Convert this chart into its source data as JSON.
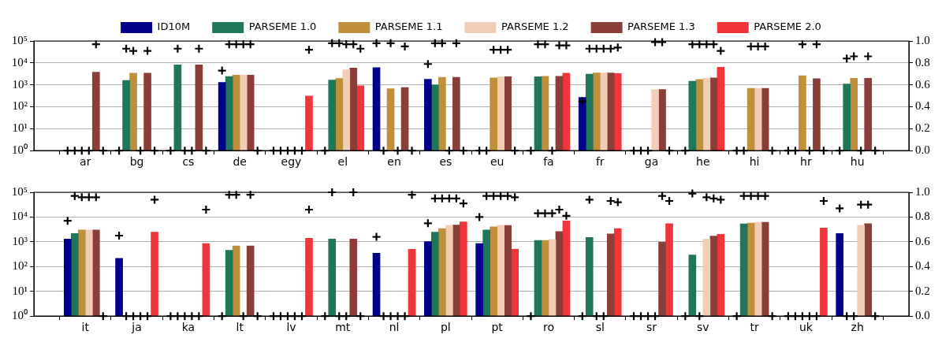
{
  "chart_data": [
    {
      "type": "bar",
      "legend": "top",
      "grid": "y",
      "log": "y",
      "categories": [
        "ar",
        "bg",
        "cs",
        "de",
        "egy",
        "el",
        "en",
        "es",
        "eu",
        "fa",
        "fr",
        "ga",
        "he",
        "hi",
        "hr",
        "hu"
      ],
      "ylim": [
        1,
        100000
      ],
      "yticks": [
        {
          "value": 1,
          "label": "10⁰"
        },
        {
          "value": 10,
          "label": "10¹"
        },
        {
          "value": 100,
          "label": "10²"
        },
        {
          "value": 1000,
          "label": "10³"
        },
        {
          "value": 10000,
          "label": "10⁴"
        },
        {
          "value": 100000,
          "label": "10⁵"
        }
      ],
      "y2lim": [
        0,
        1
      ],
      "y2ticks": [
        {
          "value": 0,
          "label": "0.0"
        },
        {
          "value": 0.2,
          "label": "0.2"
        },
        {
          "value": 0.4,
          "label": "0.4"
        },
        {
          "value": 0.6,
          "label": "0.6"
        },
        {
          "value": 0.8,
          "label": "0.8"
        },
        {
          "value": 1,
          "label": "1.0"
        }
      ],
      "series": [
        {
          "name": "ID10M",
          "color": "#00008b",
          "values": [
            null,
            null,
            null,
            1300,
            null,
            null,
            6100,
            1800,
            null,
            null,
            270,
            null,
            null,
            null,
            null,
            null
          ]
        },
        {
          "name": "PARSEME 1.0",
          "color": "#217558",
          "values": [
            null,
            1600,
            8200,
            2400,
            null,
            1650,
            null,
            980,
            null,
            2350,
            3100,
            null,
            1450,
            null,
            null,
            1100
          ]
        },
        {
          "name": "PARSEME 1.1",
          "color": "#bf8f3a",
          "values": [
            null,
            3400,
            null,
            2750,
            null,
            1950,
            670,
            2200,
            2100,
            2450,
            3500,
            null,
            1750,
            700,
            2600,
            2000
          ]
        },
        {
          "name": "PARSEME 1.2",
          "color": "#f2cdb5",
          "values": [
            null,
            null,
            null,
            2800,
            null,
            4900,
            null,
            null,
            2350,
            null,
            3500,
            610,
            2000,
            700,
            null,
            null
          ]
        },
        {
          "name": "PARSEME 1.3",
          "color": "#8b3e38",
          "values": [
            3800,
            3400,
            8200,
            2800,
            null,
            5800,
            750,
            2200,
            2350,
            2450,
            3500,
            610,
            2100,
            700,
            1900,
            2000
          ]
        },
        {
          "name": "PARSEME 2.0",
          "color": "#f2353b",
          "values": [
            null,
            null,
            null,
            null,
            310,
            910,
            null,
            null,
            null,
            3400,
            3250,
            null,
            6300,
            null,
            null,
            null
          ]
        },
        {
          "type": "scatter",
          "axis": "y2",
          "marker": "cross",
          "color": "#000000",
          "values": [
            0,
            0,
            0,
            0.73,
            0,
            0,
            0.98,
            0.79,
            0,
            0,
            0.45,
            0,
            0,
            0,
            0,
            0
          ]
        },
        {
          "type": "scatter",
          "axis": "y2",
          "marker": "cross",
          "color": "#000000",
          "values": [
            0,
            0.93,
            0.93,
            0.97,
            0,
            0.98,
            0,
            0.98,
            0,
            0.97,
            0.93,
            0,
            0.97,
            0,
            0,
            0.84
          ]
        },
        {
          "type": "scatter",
          "axis": "y2",
          "marker": "cross",
          "color": "#000000",
          "values": [
            0,
            0.91,
            0,
            0.97,
            0,
            0.98,
            0.98,
            0.98,
            0.92,
            0.97,
            0.93,
            0,
            0.97,
            0.95,
            0.97,
            0.86
          ]
        },
        {
          "type": "scatter",
          "axis": "y2",
          "marker": "cross",
          "color": "#000000",
          "values": [
            0,
            0,
            0,
            0.97,
            0,
            0.97,
            0,
            0,
            0.92,
            0,
            0.93,
            0.99,
            0.97,
            0.95,
            0,
            0
          ]
        },
        {
          "type": "scatter",
          "axis": "y2",
          "marker": "cross",
          "color": "#000000",
          "values": [
            0.97,
            0.91,
            0.93,
            0.97,
            0,
            0.97,
            0.95,
            0.98,
            0.92,
            0.96,
            0.93,
            0.99,
            0.97,
            0.95,
            0.97,
            0.86
          ]
        },
        {
          "type": "scatter",
          "axis": "y2",
          "marker": "cross",
          "color": "#000000",
          "values": [
            0,
            0,
            0,
            0,
            0.92,
            0.93,
            0,
            0,
            0,
            0.96,
            0.94,
            0,
            0.91,
            0,
            0,
            0
          ]
        }
      ]
    },
    {
      "type": "bar",
      "grid": "y",
      "log": "y",
      "categories": [
        "it",
        "ja",
        "ka",
        "lt",
        "lv",
        "mt",
        "nl",
        "pl",
        "pt",
        "ro",
        "sl",
        "sr",
        "sv",
        "tr",
        "uk",
        "zh"
      ],
      "ylim": [
        1,
        100000
      ],
      "yticks": [
        {
          "value": 1,
          "label": "10⁰"
        },
        {
          "value": 10,
          "label": "10¹"
        },
        {
          "value": 100,
          "label": "10²"
        },
        {
          "value": 1000,
          "label": "10³"
        },
        {
          "value": 10000,
          "label": "10⁴"
        },
        {
          "value": 100000,
          "label": "10⁵"
        }
      ],
      "y2lim": [
        0,
        1
      ],
      "y2ticks": [
        {
          "value": 0,
          "label": "0.0"
        },
        {
          "value": 0.2,
          "label": "0.2"
        },
        {
          "value": 0.4,
          "label": "0.4"
        },
        {
          "value": 0.6,
          "label": "0.6"
        },
        {
          "value": 0.8,
          "label": "0.8"
        },
        {
          "value": 1,
          "label": "1.0"
        }
      ],
      "series": [
        {
          "color": "#00008b",
          "values": [
            1300,
            215,
            null,
            null,
            null,
            null,
            350,
            1020,
            850,
            null,
            null,
            null,
            null,
            null,
            null,
            2150
          ]
        },
        {
          "color": "#217558",
          "values": [
            2150,
            null,
            null,
            455,
            null,
            1300,
            null,
            2450,
            3000,
            1150,
            1500,
            null,
            295,
            5300,
            null,
            null
          ]
        },
        {
          "color": "#bf8f3a",
          "values": [
            3000,
            null,
            null,
            680,
            null,
            null,
            null,
            3450,
            4000,
            1150,
            null,
            null,
            null,
            5700,
            null,
            null
          ]
        },
        {
          "color": "#f2cdb5",
          "values": [
            3000,
            null,
            null,
            null,
            null,
            null,
            null,
            4700,
            4600,
            1250,
            null,
            null,
            1300,
            6100,
            null,
            4700
          ]
        },
        {
          "color": "#8b3e38",
          "values": [
            3000,
            null,
            null,
            680,
            null,
            1300,
            null,
            4800,
            4600,
            2600,
            2100,
            970,
            1700,
            6100,
            null,
            5400
          ]
        },
        {
          "color": "#f2353b",
          "values": [
            null,
            2450,
            850,
            null,
            1400,
            null,
            500,
            6400,
            510,
            7000,
            3400,
            5400,
            2000,
            null,
            3600,
            null
          ]
        },
        {
          "type": "scatter",
          "axis": "y2",
          "marker": "cross",
          "color": "#000000",
          "values": [
            0.77,
            0.65,
            0,
            0,
            0,
            0,
            0.64,
            0.75,
            0.8,
            0,
            0,
            0,
            0,
            0,
            0,
            0.87
          ]
        },
        {
          "type": "scatter",
          "axis": "y2",
          "marker": "cross",
          "color": "#000000",
          "values": [
            0.97,
            0,
            0,
            0.98,
            0,
            1.0,
            0,
            0.95,
            0.97,
            0.83,
            0.94,
            0,
            0.99,
            0.97,
            0,
            0
          ]
        },
        {
          "type": "scatter",
          "axis": "y2",
          "marker": "cross",
          "color": "#000000",
          "values": [
            0.96,
            0,
            0,
            0.98,
            0,
            0,
            0,
            0.95,
            0.97,
            0.83,
            0,
            0,
            0,
            0.97,
            0,
            0
          ]
        },
        {
          "type": "scatter",
          "axis": "y2",
          "marker": "cross",
          "color": "#000000",
          "values": [
            0.96,
            0,
            0,
            0,
            0,
            0,
            0,
            0.95,
            0.97,
            0.83,
            0,
            0,
            0.96,
            0.97,
            0,
            0.9
          ]
        },
        {
          "type": "scatter",
          "axis": "y2",
          "marker": "cross",
          "color": "#000000",
          "values": [
            0.96,
            0,
            0,
            0.98,
            0,
            1.0,
            0,
            0.95,
            0.97,
            0.86,
            0.93,
            0.97,
            0.95,
            0.97,
            0,
            0.9
          ]
        },
        {
          "type": "scatter",
          "axis": "y2",
          "marker": "cross",
          "color": "#000000",
          "values": [
            0,
            0.94,
            0.86,
            0,
            0.86,
            0,
            0.98,
            0.91,
            0.96,
            0.81,
            0.92,
            0.93,
            0.94,
            0,
            0.93,
            0
          ]
        }
      ]
    }
  ]
}
